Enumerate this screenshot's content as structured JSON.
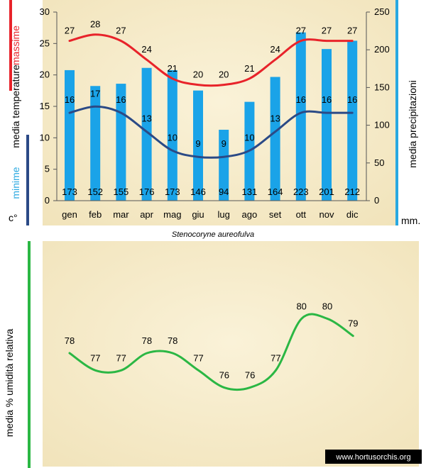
{
  "chart_data": [
    {
      "type": "bar",
      "categories": [
        "gen",
        "feb",
        "mar",
        "apr",
        "mag",
        "giu",
        "lug",
        "ago",
        "set",
        "ott",
        "nov",
        "dic"
      ],
      "left_axis": {
        "ticks": [
          0,
          5,
          10,
          15,
          20,
          25,
          30
        ],
        "ylim": [
          0,
          30
        ]
      },
      "right_axis": {
        "ticks": [
          0,
          50,
          100,
          150,
          200,
          250
        ],
        "ylim": [
          0,
          250
        ]
      },
      "series": [
        {
          "name": "massime",
          "type": "line",
          "axis": "left",
          "color": "#e8232a",
          "values": [
            27,
            28,
            27,
            24,
            21,
            20,
            20,
            21,
            24,
            27,
            27,
            27
          ]
        },
        {
          "name": "minime",
          "type": "line",
          "axis": "left",
          "color": "#2b4a86",
          "values": [
            16,
            17,
            16,
            13,
            10,
            9,
            9,
            10,
            13,
            16,
            16,
            16
          ]
        },
        {
          "name": "precipitazioni",
          "type": "bar",
          "axis": "right",
          "color": "#1aa3e8",
          "values": [
            173,
            152,
            155,
            176,
            173,
            146,
            94,
            131,
            164,
            223,
            201,
            212
          ]
        }
      ],
      "labels": {
        "massime": "massime",
        "media_temperature": "media  temperature",
        "minime": "minime",
        "unit_left": "c°",
        "media_precipitazioni": "media  precipitazioni",
        "unit_right": "mm."
      },
      "legend": "none"
    },
    {
      "type": "line",
      "categories": [
        "gen",
        "feb",
        "mar",
        "apr",
        "mag",
        "giu",
        "lug",
        "ago",
        "set",
        "ott",
        "nov",
        "dic"
      ],
      "series": [
        {
          "type": "line",
          "color": "#2bb744",
          "values": [
            78,
            77,
            77,
            78,
            78,
            77,
            76,
            76,
            77,
            80,
            80,
            79
          ]
        }
      ],
      "ylabel": "media %  umidità relativa"
    }
  ],
  "caption": "Stenocoryne aureofulva",
  "watermark": "www.hortusorchis.org",
  "colors": {
    "panel_bg": "#f6ebc8",
    "max_temp": "#e8232a",
    "min_temp": "#2b4a86",
    "rain": "#1aa3e8",
    "humidity": "#2bb744",
    "accent_right": "#29a8e0"
  }
}
